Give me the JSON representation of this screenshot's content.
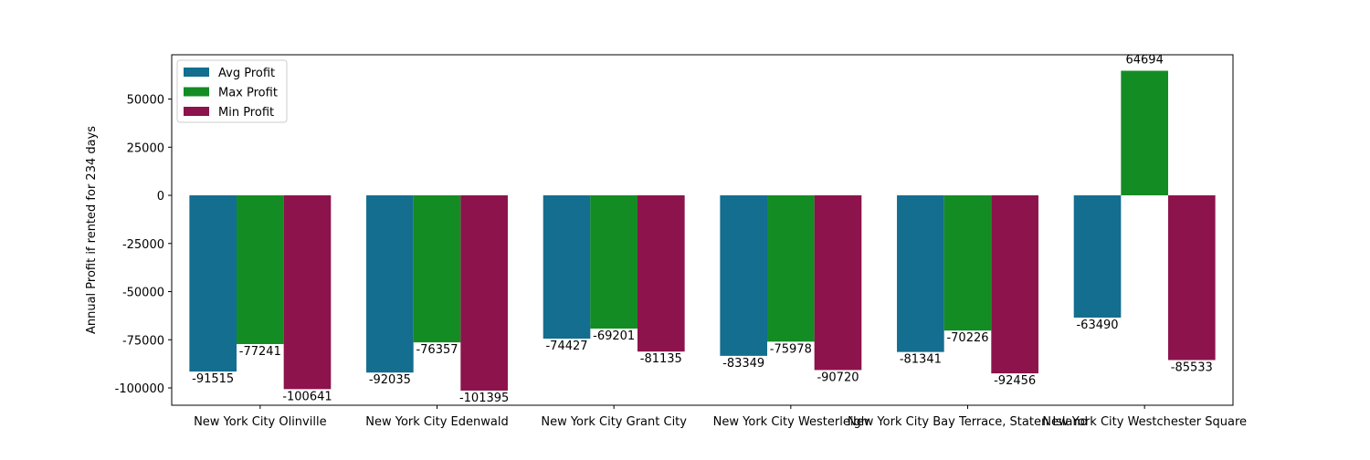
{
  "chart_data": {
    "type": "bar",
    "title": "",
    "xlabel": "",
    "ylabel": "Annual Profit if rented for 234 days",
    "categories": [
      "New York City Olinville",
      "New York City Edenwald",
      "New York City Grant City",
      "New York City Westerleigh",
      "New York City Bay Terrace, Staten Island",
      "New York City Westchester Square"
    ],
    "series": [
      {
        "name": "Avg Profit",
        "color": "#136e8f",
        "values": [
          -91515,
          -92035,
          -74427,
          -83349,
          -81341,
          -63490
        ]
      },
      {
        "name": "Max Profit",
        "color": "#148c24",
        "values": [
          -77241,
          -76357,
          -69201,
          -75978,
          -70226,
          64694
        ]
      },
      {
        "name": "Min Profit",
        "color": "#8c134b",
        "values": [
          -100641,
          -101395,
          -81135,
          -90720,
          -92456,
          -85533
        ]
      }
    ],
    "ylim": [
      -109000,
      73000
    ],
    "yticks": [
      -100000,
      -75000,
      -50000,
      -25000,
      0,
      25000,
      50000
    ],
    "legend_position": "top-left",
    "grid": false
  }
}
